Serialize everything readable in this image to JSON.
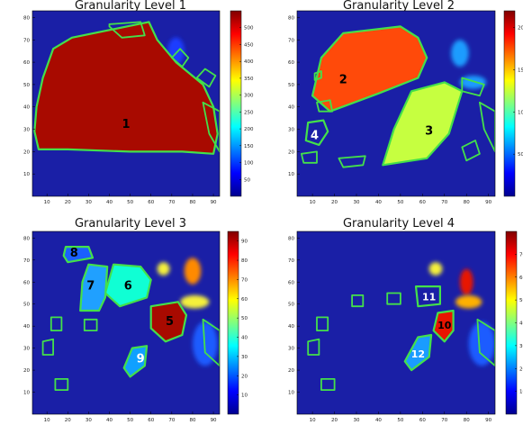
{
  "chart_data": [
    {
      "type": "heatmap",
      "title": "Granularity Level 1",
      "xlim": [
        3,
        93
      ],
      "ylim": [
        0,
        83
      ],
      "xticks": [
        10,
        20,
        30,
        40,
        50,
        60,
        70,
        80,
        90
      ],
      "yticks": [
        10,
        20,
        30,
        40,
        50,
        60,
        70,
        80
      ],
      "colorbar": {
        "min": 0,
        "max": 550,
        "ticks": [
          50,
          100,
          150,
          200,
          250,
          300,
          350,
          400,
          450,
          500
        ]
      },
      "background": "#1a1fa6",
      "regions": [
        {
          "label": "1",
          "fill": "#a80a00",
          "outline": "#44e04a",
          "label_pos": [
            48,
            32
          ],
          "label_color": "#000000",
          "points": [
            [
              22,
              71
            ],
            [
              59,
              78
            ],
            [
              63,
              70
            ],
            [
              72,
              60
            ],
            [
              85,
              50
            ],
            [
              90,
              40
            ],
            [
              92,
              28
            ],
            [
              90,
              19
            ],
            [
              75,
              20
            ],
            [
              50,
              20
            ],
            [
              20,
              21
            ],
            [
              6,
              21
            ],
            [
              4,
              29
            ],
            [
              5,
              40
            ],
            [
              8,
              53
            ],
            [
              13,
              66
            ]
          ]
        }
      ],
      "outlines": [
        {
          "points": [
            [
              40,
              77
            ],
            [
              55,
              78
            ],
            [
              57,
              72
            ],
            [
              46,
              71
            ],
            [
              40,
              76
            ]
          ]
        },
        {
          "points": [
            [
              70,
              62
            ],
            [
              75,
              58
            ],
            [
              78,
              62
            ],
            [
              74,
              66
            ]
          ]
        },
        {
          "points": [
            [
              82,
              53
            ],
            [
              88,
              49
            ],
            [
              91,
              54
            ],
            [
              86,
              57
            ]
          ]
        },
        {
          "points": [
            [
              85,
              42
            ],
            [
              93,
              38
            ],
            [
              93,
              20
            ],
            [
              88,
              28
            ]
          ]
        }
      ],
      "blobs": [
        {
          "cx": 72,
          "cy": 65,
          "rx": 4,
          "ry": 6,
          "color": "#1a3cff"
        }
      ]
    },
    {
      "type": "heatmap",
      "title": "Granularity Level 2",
      "xlim": [
        3,
        93
      ],
      "ylim": [
        0,
        83
      ],
      "xticks": [
        10,
        20,
        30,
        40,
        50,
        60,
        70,
        80,
        90
      ],
      "yticks": [
        10,
        20,
        30,
        40,
        50,
        60,
        70,
        80
      ],
      "colorbar": {
        "min": 0,
        "max": 220,
        "ticks": [
          50,
          100,
          150,
          200
        ]
      },
      "background": "#1a1fa6",
      "regions": [
        {
          "label": "2",
          "fill": "#ff4a0a",
          "outline": "#44e04a",
          "label_pos": [
            24,
            52
          ],
          "label_color": "#000000",
          "points": [
            [
              24,
              73
            ],
            [
              50,
              76
            ],
            [
              58,
              71
            ],
            [
              62,
              62
            ],
            [
              58,
              53
            ],
            [
              40,
              46
            ],
            [
              18,
              38
            ],
            [
              10,
              45
            ],
            [
              14,
              62
            ]
          ]
        },
        {
          "label": "3",
          "fill": "#c6ff40",
          "outline": "#44e04a",
          "label_pos": [
            63,
            29
          ],
          "label_color": "#000000",
          "points": [
            [
              55,
              47
            ],
            [
              70,
              51
            ],
            [
              78,
              47
            ],
            [
              72,
              28
            ],
            [
              62,
              17
            ],
            [
              42,
              14
            ],
            [
              47,
              30
            ]
          ]
        },
        {
          "label": "4",
          "fill": "#1a1fa6",
          "outline": "#44e04a",
          "label_pos": [
            11,
            27
          ],
          "label_color": "#ffffff",
          "points": [
            [
              8,
              33
            ],
            [
              15,
              34
            ],
            [
              17,
              29
            ],
            [
              13,
              23
            ],
            [
              7,
              25
            ]
          ]
        }
      ],
      "outlines": [
        {
          "points": [
            [
              11,
              55
            ],
            [
              14,
              56
            ],
            [
              14,
              53
            ],
            [
              11,
              52
            ]
          ]
        },
        {
          "points": [
            [
              12,
              42
            ],
            [
              18,
              43
            ],
            [
              19,
              38
            ],
            [
              13,
              38
            ]
          ]
        },
        {
          "points": [
            [
              5,
              19
            ],
            [
              12,
              20
            ],
            [
              12,
              15
            ],
            [
              6,
              15
            ]
          ]
        },
        {
          "points": [
            [
              22,
              17
            ],
            [
              34,
              18
            ],
            [
              33,
              14
            ],
            [
              24,
              13
            ]
          ]
        },
        {
          "points": [
            [
              78,
              53
            ],
            [
              88,
              50
            ],
            [
              86,
              45
            ],
            [
              78,
              47
            ]
          ]
        },
        {
          "points": [
            [
              86,
              42
            ],
            [
              93,
              38
            ],
            [
              93,
              20
            ],
            [
              88,
              30
            ]
          ]
        },
        {
          "points": [
            [
              78,
              22
            ],
            [
              84,
              25
            ],
            [
              86,
              19
            ],
            [
              80,
              16
            ]
          ]
        }
      ],
      "blobs": [
        {
          "cx": 77,
          "cy": 64,
          "rx": 4,
          "ry": 6,
          "color": "#1a9cff"
        },
        {
          "cx": 83,
          "cy": 51,
          "rx": 6,
          "ry": 3,
          "color": "#1a9cff"
        }
      ]
    },
    {
      "type": "heatmap",
      "title": "Granularity Level 3",
      "xlim": [
        3,
        93
      ],
      "ylim": [
        0,
        83
      ],
      "xticks": [
        10,
        20,
        30,
        40,
        50,
        60,
        70,
        80,
        90
      ],
      "yticks": [
        10,
        20,
        30,
        40,
        50,
        60,
        70,
        80
      ],
      "colorbar": {
        "min": 0,
        "max": 95,
        "ticks": [
          10,
          20,
          30,
          40,
          50,
          60,
          70,
          80,
          90
        ]
      },
      "background": "#1a1fa6",
      "regions": [
        {
          "label": "5",
          "fill": "#a80a00",
          "outline": "#44e04a",
          "label_pos": [
            69,
            42
          ],
          "label_color": "#000000",
          "points": [
            [
              60,
              49
            ],
            [
              73,
              51
            ],
            [
              77,
              45
            ],
            [
              75,
              36
            ],
            [
              67,
              33
            ],
            [
              60,
              39
            ]
          ]
        },
        {
          "label": "6",
          "fill": "#10ffd4",
          "outline": "#44e04a",
          "label_pos": [
            49,
            58
          ],
          "label_color": "#000000",
          "points": [
            [
              42,
              68
            ],
            [
              55,
              67
            ],
            [
              60,
              61
            ],
            [
              58,
              53
            ],
            [
              45,
              49
            ],
            [
              38,
              55
            ]
          ]
        },
        {
          "label": "7",
          "fill": "#20a0ff",
          "outline": "#44e04a",
          "label_pos": [
            31,
            58
          ],
          "label_color": "#000000",
          "points": [
            [
              30,
              68
            ],
            [
              39,
              67
            ],
            [
              38,
              53
            ],
            [
              35,
              47
            ],
            [
              26,
              47
            ],
            [
              27,
              60
            ]
          ]
        },
        {
          "label": "8",
          "fill": "#1a60ff",
          "outline": "#44e04a",
          "label_pos": [
            23,
            73
          ],
          "label_color": "#000000",
          "points": [
            [
              19,
              76
            ],
            [
              30,
              76
            ],
            [
              32,
              71
            ],
            [
              20,
              69
            ],
            [
              18,
              72
            ]
          ]
        },
        {
          "label": "9",
          "fill": "#10a0ff",
          "outline": "#44e04a",
          "label_pos": [
            55,
            25
          ],
          "label_color": "#ffffff",
          "points": [
            [
              51,
              30
            ],
            [
              58,
              31
            ],
            [
              57,
              22
            ],
            [
              50,
              17
            ],
            [
              47,
              21
            ]
          ]
        }
      ],
      "outlines": [
        {
          "points": [
            [
              85,
              43
            ],
            [
              93,
              38
            ],
            [
              93,
              22
            ],
            [
              86,
              28
            ]
          ]
        },
        {
          "points": [
            [
              12,
              44
            ],
            [
              17,
              44
            ],
            [
              17,
              38
            ],
            [
              12,
              38
            ]
          ]
        },
        {
          "points": [
            [
              8,
              33
            ],
            [
              13,
              34
            ],
            [
              13,
              27
            ],
            [
              8,
              27
            ]
          ]
        },
        {
          "points": [
            [
              14,
              16
            ],
            [
              20,
              16
            ],
            [
              20,
              11
            ],
            [
              14,
              11
            ]
          ]
        },
        {
          "points": [
            [
              28,
              43
            ],
            [
              34,
              43
            ],
            [
              34,
              38
            ],
            [
              28,
              38
            ]
          ]
        }
      ],
      "blobs": [
        {
          "cx": 80,
          "cy": 65,
          "rx": 4,
          "ry": 6,
          "color": "#ff8a00"
        },
        {
          "cx": 81,
          "cy": 51,
          "rx": 7,
          "ry": 3,
          "color": "#f5f03a"
        },
        {
          "cx": 66,
          "cy": 66,
          "rx": 3,
          "ry": 3,
          "color": "#f5f03a"
        },
        {
          "cx": 86,
          "cy": 32,
          "rx": 6,
          "ry": 10,
          "color": "#1a5cff"
        }
      ]
    },
    {
      "type": "heatmap",
      "title": "Granularity Level 4",
      "xlim": [
        3,
        93
      ],
      "ylim": [
        0,
        83
      ],
      "xticks": [
        10,
        20,
        30,
        40,
        50,
        60,
        70,
        80,
        90
      ],
      "yticks": [
        10,
        20,
        30,
        40,
        50,
        60,
        70,
        80
      ],
      "colorbar": {
        "min": 0,
        "max": 80,
        "ticks": [
          10,
          20,
          30,
          40,
          50,
          60,
          70
        ]
      },
      "background": "#1a1fa6",
      "regions": [
        {
          "label": "10",
          "fill": "#e81400",
          "outline": "#44e04a",
          "label_pos": [
            70,
            40
          ],
          "label_color": "#000000",
          "points": [
            [
              67,
              46
            ],
            [
              74,
              47
            ],
            [
              74,
              38
            ],
            [
              70,
              33
            ],
            [
              65,
              38
            ]
          ]
        },
        {
          "label": "11",
          "fill": "#1a1fa6",
          "outline": "#44e04a",
          "label_pos": [
            63,
            53
          ],
          "label_color": "#ffffff",
          "points": [
            [
              57,
              58
            ],
            [
              68,
              58
            ],
            [
              68,
              50
            ],
            [
              58,
              49
            ]
          ]
        },
        {
          "label": "12",
          "fill": "#1a9cff",
          "outline": "#44e04a",
          "label_pos": [
            58,
            27
          ],
          "label_color": "#ffffff",
          "points": [
            [
              58,
              35
            ],
            [
              64,
              36
            ],
            [
              63,
              26
            ],
            [
              55,
              20
            ],
            [
              52,
              24
            ]
          ]
        }
      ],
      "outlines": [
        {
          "points": [
            [
              85,
              43
            ],
            [
              93,
              38
            ],
            [
              93,
              22
            ],
            [
              86,
              28
            ]
          ]
        },
        {
          "points": [
            [
              12,
              44
            ],
            [
              17,
              44
            ],
            [
              17,
              38
            ],
            [
              12,
              38
            ]
          ]
        },
        {
          "points": [
            [
              8,
              33
            ],
            [
              13,
              34
            ],
            [
              13,
              27
            ],
            [
              8,
              27
            ]
          ]
        },
        {
          "points": [
            [
              14,
              16
            ],
            [
              20,
              16
            ],
            [
              20,
              11
            ],
            [
              14,
              11
            ]
          ]
        },
        {
          "points": [
            [
              44,
              55
            ],
            [
              50,
              55
            ],
            [
              50,
              50
            ],
            [
              44,
              50
            ]
          ]
        },
        {
          "points": [
            [
              28,
              54
            ],
            [
              33,
              54
            ],
            [
              33,
              49
            ],
            [
              28,
              49
            ]
          ]
        }
      ],
      "blobs": [
        {
          "cx": 80,
          "cy": 60,
          "rx": 3,
          "ry": 6,
          "color": "#e81400"
        },
        {
          "cx": 81,
          "cy": 51,
          "rx": 6,
          "ry": 3,
          "color": "#ffb000"
        },
        {
          "cx": 87,
          "cy": 32,
          "rx": 6,
          "ry": 10,
          "color": "#1a5cff"
        },
        {
          "cx": 66,
          "cy": 66,
          "rx": 3,
          "ry": 3,
          "color": "#f5f03a"
        }
      ]
    }
  ]
}
